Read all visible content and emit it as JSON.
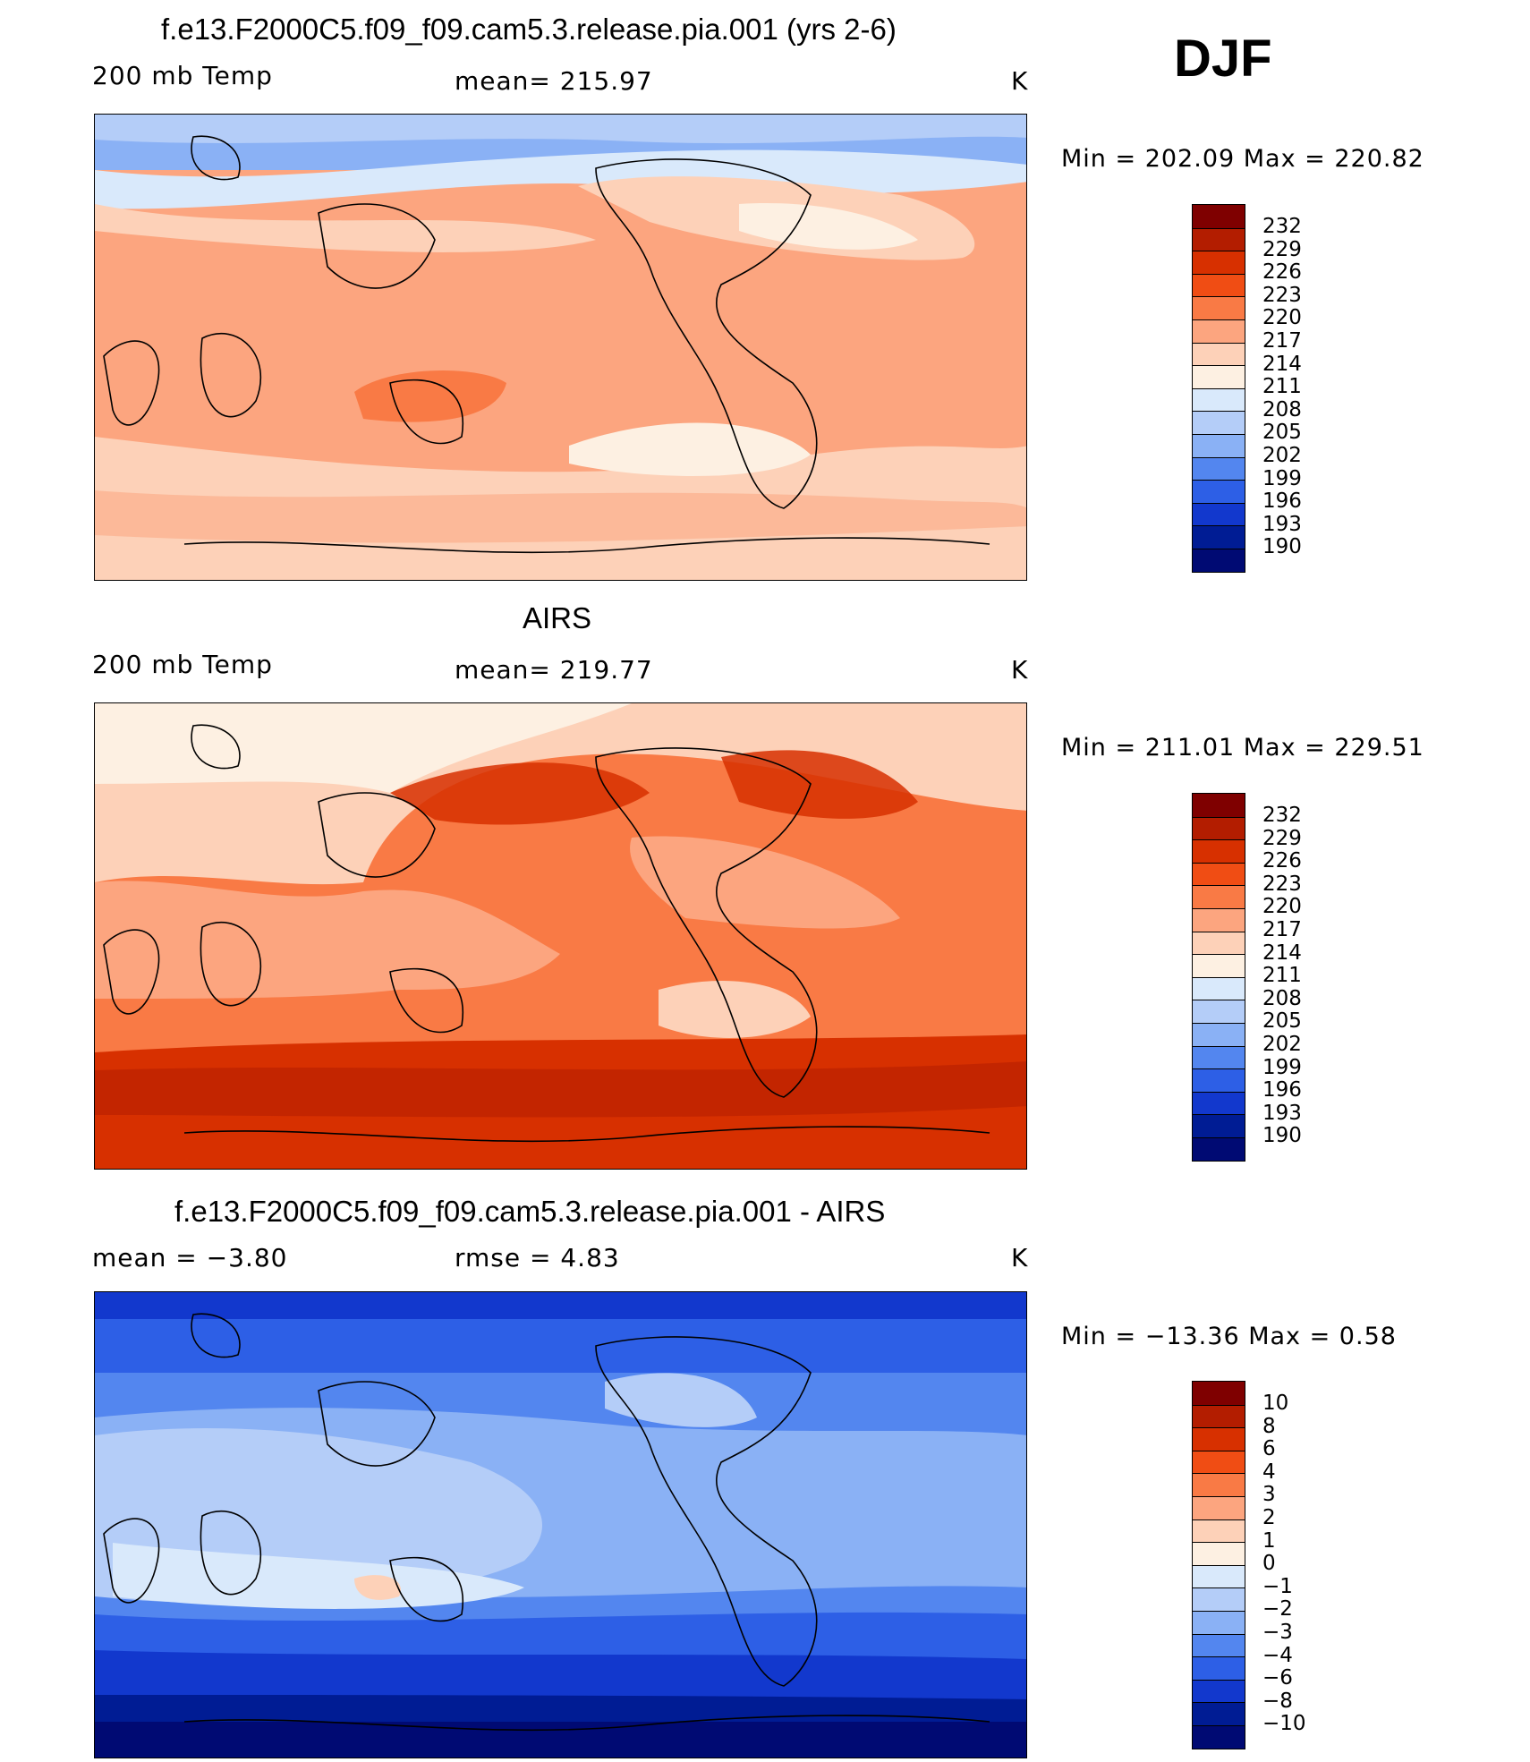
{
  "season": "DJF",
  "panels": [
    {
      "title": "f.e13.F2000C5.f09_f09.cam5.3.release.pia.001 (yrs 2-6)",
      "left_label": "200 mb Temp",
      "center_label": "mean= 215.97",
      "units": "K",
      "minmax": "Min = 202.09 Max = 220.82",
      "colorbar_labels": [
        "232",
        "229",
        "226",
        "223",
        "220",
        "217",
        "214",
        "211",
        "208",
        "205",
        "202",
        "199",
        "196",
        "193",
        "190"
      ],
      "colorbar_colors": [
        "#7f0000",
        "#b31d00",
        "#d73000",
        "#f04d14",
        "#f97a45",
        "#fca57f",
        "#fdd1b8",
        "#fdf0e2",
        "#d9e9fb",
        "#b4cdf8",
        "#8ab1f5",
        "#5386ef",
        "#2d5fe6",
        "#1238cd",
        "#001c94",
        "#000a73"
      ],
      "map_style": "model"
    },
    {
      "title": "AIRS",
      "left_label": "200 mb Temp",
      "center_label": "mean= 219.77",
      "units": "K",
      "minmax": "Min = 211.01 Max = 229.51",
      "colorbar_labels": [
        "232",
        "229",
        "226",
        "223",
        "220",
        "217",
        "214",
        "211",
        "208",
        "205",
        "202",
        "199",
        "196",
        "193",
        "190"
      ],
      "colorbar_colors": [
        "#7f0000",
        "#b31d00",
        "#d73000",
        "#f04d14",
        "#f97a45",
        "#fca57f",
        "#fdd1b8",
        "#fdf0e2",
        "#d9e9fb",
        "#b4cdf8",
        "#8ab1f5",
        "#5386ef",
        "#2d5fe6",
        "#1238cd",
        "#001c94",
        "#000a73"
      ],
      "map_style": "obs"
    },
    {
      "title": "f.e13.F2000C5.f09_f09.cam5.3.release.pia.001 - AIRS",
      "left_label": "mean =   −3.80",
      "center_label": "rmse =    4.83",
      "units": "K",
      "minmax": "Min = −13.36 Max =    0.58",
      "colorbar_labels": [
        "10",
        "8",
        "6",
        "4",
        "3",
        "2",
        "1",
        "0",
        "−1",
        "−2",
        "−3",
        "−4",
        "−6",
        "−8",
        "−10"
      ],
      "colorbar_colors": [
        "#7f0000",
        "#b31d00",
        "#d73000",
        "#f04d14",
        "#f97a45",
        "#fca57f",
        "#fdd1b8",
        "#fdf0e2",
        "#d9e9fb",
        "#b4cdf8",
        "#8ab1f5",
        "#5386ef",
        "#2d5fe6",
        "#1238cd",
        "#001c94",
        "#000a73"
      ],
      "map_style": "diff"
    }
  ]
}
